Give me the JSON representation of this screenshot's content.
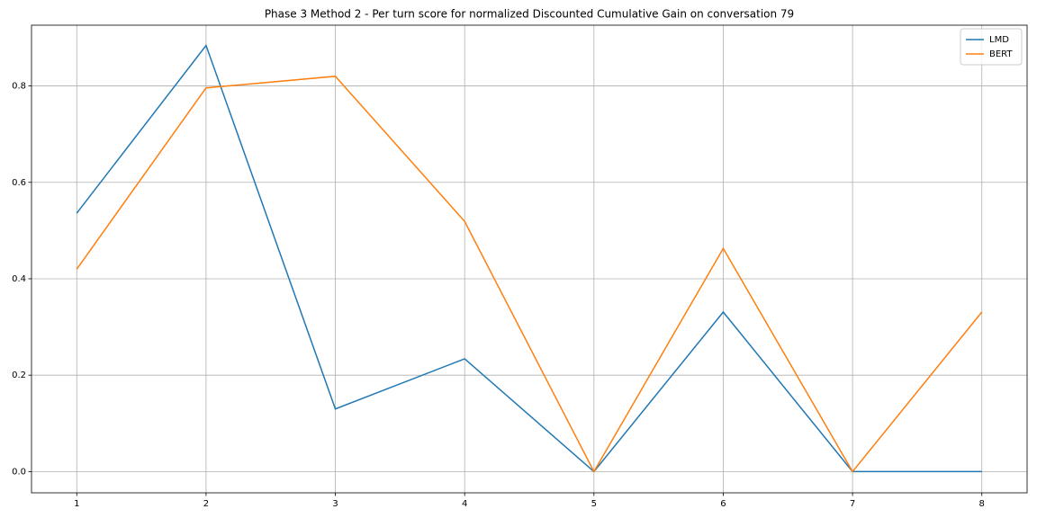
{
  "chart_data": {
    "type": "line",
    "title": "Phase 3 Method 2 - Per turn score for normalized Discounted Cumulative Gain on conversation 79",
    "x": [
      1,
      2,
      3,
      4,
      5,
      6,
      7,
      8
    ],
    "series": [
      {
        "name": "LMD",
        "color": "#1f77b4",
        "values": [
          0.536,
          0.884,
          0.13,
          0.234,
          0,
          0.331,
          0,
          0
        ]
      },
      {
        "name": "BERT",
        "color": "#ff7f0e",
        "values": [
          0.42,
          0.796,
          0.82,
          0.519,
          0,
          0.463,
          0,
          0.331
        ]
      }
    ],
    "xlim": [
      0.65,
      8.35
    ],
    "xticks": [
      1,
      2,
      3,
      4,
      5,
      6,
      7,
      8
    ],
    "ylim": [
      -0.044,
      0.926
    ],
    "yticks": [
      {
        "value": 0,
        "label": "0.0"
      },
      0.2,
      0.4,
      0.6,
      0.8
    ],
    "grid": true,
    "legend": "upper right"
  }
}
